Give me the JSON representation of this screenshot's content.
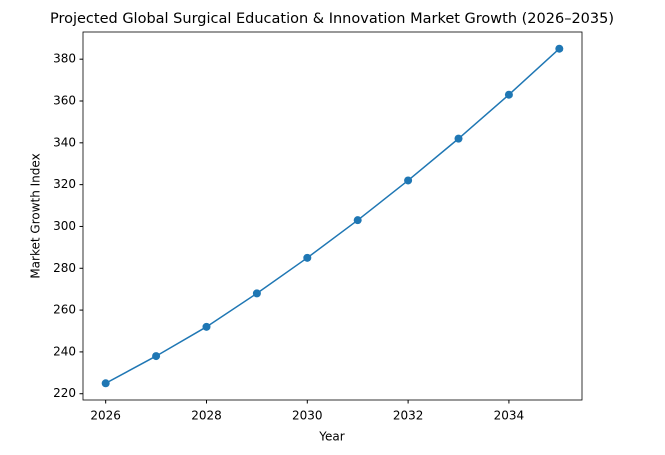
{
  "chart_data": {
    "type": "line",
    "title": "Projected Global Surgical Education & Innovation Market Growth (2026–2035)",
    "xlabel": "Year",
    "ylabel": "Market Growth Index",
    "x": [
      2026,
      2027,
      2028,
      2029,
      2030,
      2031,
      2032,
      2033,
      2034,
      2035
    ],
    "values": [
      225,
      238,
      252,
      268,
      285,
      303,
      322,
      342,
      363,
      385
    ],
    "color": "#1f77b4",
    "xlim": [
      2025.55,
      2035.45
    ],
    "xticks": [
      2026,
      2028,
      2030,
      2032,
      2034
    ],
    "ylim": [
      217,
      393
    ],
    "yticks": [
      220,
      240,
      260,
      280,
      300,
      320,
      340,
      360,
      380
    ],
    "grid": false
  }
}
